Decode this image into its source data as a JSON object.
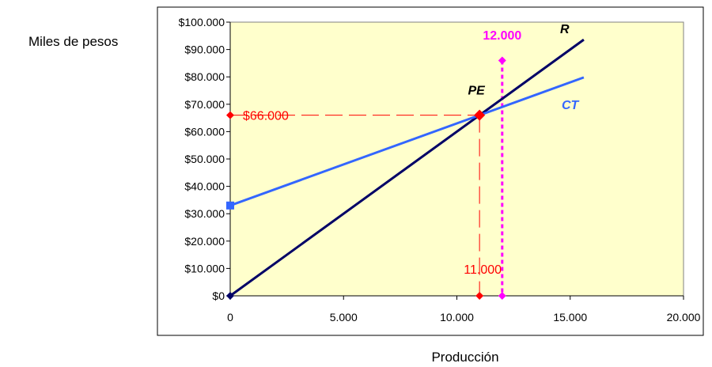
{
  "chart_data": {
    "type": "line",
    "title": "",
    "xlabel": "Producción",
    "ylabel": "Miles de pesos",
    "xlim": [
      0,
      20000
    ],
    "ylim": [
      0,
      100000
    ],
    "x_ticks": [
      {
        "value": 0,
        "label": "0"
      },
      {
        "value": 5000,
        "label": "5.000"
      },
      {
        "value": 10000,
        "label": "10.000"
      },
      {
        "value": 15000,
        "label": "15.000"
      },
      {
        "value": 20000,
        "label": "20.000"
      }
    ],
    "y_ticks": [
      {
        "value": 0,
        "label": "$0"
      },
      {
        "value": 10000,
        "label": "$10.000"
      },
      {
        "value": 20000,
        "label": "$20.000"
      },
      {
        "value": 30000,
        "label": "$30.000"
      },
      {
        "value": 40000,
        "label": "$40.000"
      },
      {
        "value": 50000,
        "label": "$50.000"
      },
      {
        "value": 60000,
        "label": "$60.000"
      },
      {
        "value": 70000,
        "label": "$70.000"
      },
      {
        "value": 80000,
        "label": "$80.000"
      },
      {
        "value": 90000,
        "label": "$90.000"
      },
      {
        "value": 100000,
        "label": "$100.000"
      }
    ],
    "grid": false,
    "plot_background": "#ffffcc",
    "series": [
      {
        "name": "R",
        "color": "#000066",
        "points": [
          [
            0,
            0
          ],
          [
            15600,
            93600
          ]
        ],
        "start_marker": "diamond"
      },
      {
        "name": "CT",
        "color": "#3366ff",
        "points": [
          [
            0,
            33000
          ],
          [
            15600,
            79800
          ]
        ],
        "start_marker": "square"
      }
    ],
    "annotations": {
      "break_even": {
        "label": "PE",
        "x": 11000,
        "y": 66000,
        "color": "#ff0000"
      },
      "break_even_y_label": "$66.000",
      "break_even_x_label": "11.000",
      "production_level": {
        "label": "12.000",
        "x": 12000,
        "y_top": 86000,
        "color": "#ff00ff"
      }
    }
  }
}
